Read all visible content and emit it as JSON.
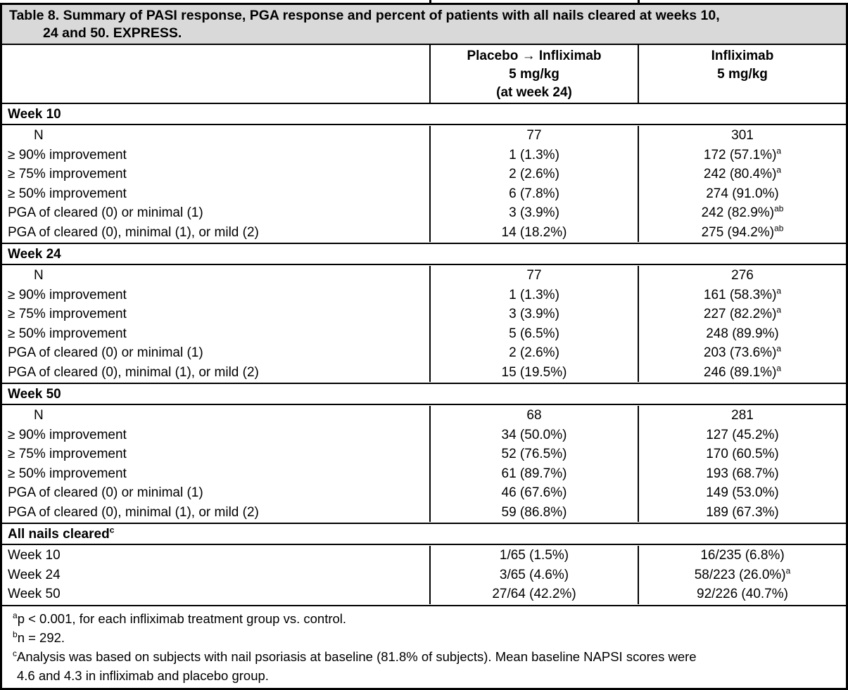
{
  "colors": {
    "title_bar_bg": "#d9d9d9",
    "border": "#000000",
    "text": "#000000",
    "background": "#ffffff"
  },
  "table": {
    "title": {
      "lines": [
        "Table 8. Summary of PASI response, PGA response and percent of patients with all nails cleared at weeks 10,",
        "24 and 50. EXPRESS."
      ]
    },
    "columns": [
      {
        "label_lines": [
          "Placebo → Infliximab",
          "5 mg/kg",
          "(at week 24)"
        ]
      },
      {
        "label_lines": [
          "Infliximab",
          "5 mg/kg"
        ]
      }
    ],
    "sections": [
      {
        "header": "Week 10",
        "rows": [
          {
            "label": "N",
            "indent": true,
            "c1": {
              "v": "77"
            },
            "c2": {
              "v": "301"
            }
          },
          {
            "label": "≥ 90% improvement",
            "c1": {
              "v": "1 (1.3%)"
            },
            "c2": {
              "v": "172 (57.1%)",
              "sup": "a"
            }
          },
          {
            "label": "≥ 75% improvement",
            "c1": {
              "v": "2 (2.6%)"
            },
            "c2": {
              "v": "242 (80.4%)",
              "sup": "a"
            }
          },
          {
            "label": "≥ 50% improvement",
            "c1": {
              "v": "6 (7.8%)"
            },
            "c2": {
              "v": "274 (91.0%)"
            }
          },
          {
            "label": "PGA of cleared (0) or minimal (1)",
            "c1": {
              "v": "3 (3.9%)"
            },
            "c2": {
              "v": "242 (82.9%)",
              "sup": "ab"
            }
          },
          {
            "label": "PGA of cleared (0), minimal (1), or mild (2)",
            "c1": {
              "v": "14 (18.2%)"
            },
            "c2": {
              "v": "275 (94.2%)",
              "sup": "ab"
            }
          }
        ]
      },
      {
        "header": "Week 24",
        "rows": [
          {
            "label": "N",
            "indent": true,
            "c1": {
              "v": "77"
            },
            "c2": {
              "v": "276"
            }
          },
          {
            "label": "≥ 90% improvement",
            "c1": {
              "v": "1 (1.3%)"
            },
            "c2": {
              "v": "161 (58.3%)",
              "sup": "a"
            }
          },
          {
            "label": "≥ 75% improvement",
            "c1": {
              "v": "3 (3.9%)"
            },
            "c2": {
              "v": "227 (82.2%)",
              "sup": "a"
            }
          },
          {
            "label": "≥ 50% improvement",
            "c1": {
              "v": "5 (6.5%)"
            },
            "c2": {
              "v": "248 (89.9%)"
            }
          },
          {
            "label": "PGA of cleared (0) or minimal (1)",
            "c1": {
              "v": "2 (2.6%)"
            },
            "c2": {
              "v": "203 (73.6%)",
              "sup": "a"
            }
          },
          {
            "label": "PGA of cleared (0), minimal (1), or mild (2)",
            "c1": {
              "v": "15 (19.5%)"
            },
            "c2": {
              "v": "246 (89.1%)",
              "sup": "a"
            }
          }
        ]
      },
      {
        "header": "Week 50",
        "rows": [
          {
            "label": "N",
            "indent": true,
            "c1": {
              "v": "68"
            },
            "c2": {
              "v": "281"
            }
          },
          {
            "label": "≥ 90% improvement",
            "c1": {
              "v": "34 (50.0%)"
            },
            "c2": {
              "v": "127 (45.2%)"
            }
          },
          {
            "label": "≥ 75% improvement",
            "c1": {
              "v": "52 (76.5%)"
            },
            "c2": {
              "v": "170 (60.5%)"
            }
          },
          {
            "label": "≥ 50% improvement",
            "c1": {
              "v": "61 (89.7%)"
            },
            "c2": {
              "v": "193 (68.7%)"
            }
          },
          {
            "label": "PGA of cleared (0) or minimal (1)",
            "c1": {
              "v": "46 (67.6%)"
            },
            "c2": {
              "v": "149 (53.0%)"
            }
          },
          {
            "label": "PGA of cleared (0), minimal (1), or mild (2)",
            "c1": {
              "v": "59 (86.8%)"
            },
            "c2": {
              "v": "189 (67.3%)"
            }
          }
        ]
      },
      {
        "header": "All nails cleared",
        "header_sup": "c",
        "rows": [
          {
            "label": "Week 10",
            "c1": {
              "v": "1/65 (1.5%)"
            },
            "c2": {
              "v": "16/235 (6.8%)"
            }
          },
          {
            "label": "Week 24",
            "c1": {
              "v": "3/65 (4.6%)"
            },
            "c2": {
              "v": "58/223 (26.0%)",
              "sup": "a"
            }
          },
          {
            "label": "Week 50",
            "c1": {
              "v": "27/64 (42.2%)"
            },
            "c2": {
              "v": "92/226 (40.7%)"
            }
          }
        ]
      }
    ],
    "footnotes": [
      {
        "sup": "a",
        "lines": [
          "p < 0.001, for each infliximab treatment group vs. control."
        ]
      },
      {
        "sup": "b",
        "lines": [
          "n = 292."
        ]
      },
      {
        "sup": "c",
        "lines": [
          "Analysis was based on subjects with nail psoriasis at baseline (81.8% of subjects). Mean baseline NAPSI scores were",
          "4.6 and 4.3 in infliximab and placebo group."
        ]
      }
    ]
  }
}
